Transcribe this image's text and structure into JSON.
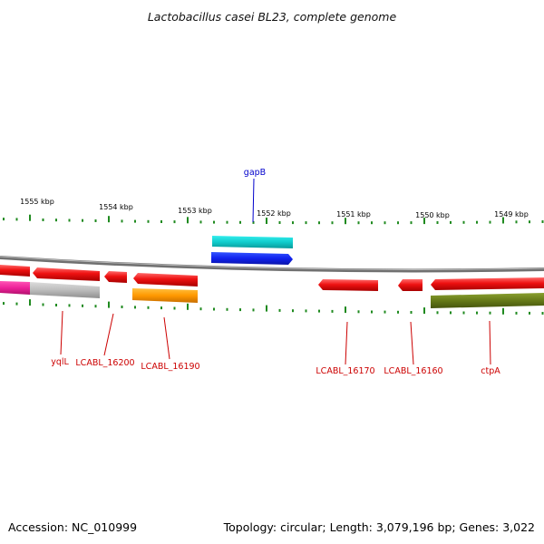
{
  "title": "Lactobacillus casei BL23, complete genome",
  "footer": {
    "accession": "Accession: NC_010999",
    "topology": "Topology: circular; Length: 3,079,196 bp; Genes: 3,022"
  },
  "colors": {
    "backbone": "#808080",
    "tick": "#1f8a1f",
    "feature_red": "#ee1111",
    "feature_cyan": "#11cccc",
    "feature_blue": "#1122ee",
    "feature_magenta": "#ee2299",
    "feature_gray": "#bcbcbc",
    "feature_orange": "#ff9900",
    "feature_olive": "#667a18",
    "label_red": "#cc0000",
    "label_blue": "#0000cc"
  },
  "scale_ticks": [
    {
      "label": "1555 kbp",
      "kbp": 1555
    },
    {
      "label": "1554 kbp",
      "kbp": 1554
    },
    {
      "label": "1553 kbp",
      "kbp": 1553
    },
    {
      "label": "1552 kbp",
      "kbp": 1552
    },
    {
      "label": "1551 kbp",
      "kbp": 1551
    },
    {
      "label": "1550 kbp",
      "kbp": 1550
    },
    {
      "label": "1549 kbp",
      "kbp": 1549
    }
  ],
  "gene_labels": [
    {
      "id": "gapB",
      "text": "gapB",
      "color": "blue"
    },
    {
      "id": "yqlL",
      "text": "yqlL",
      "color": "red"
    },
    {
      "id": "LCABL_16200",
      "text": "LCABL_16200",
      "color": "red"
    },
    {
      "id": "LCABL_16190",
      "text": "LCABL_16190",
      "color": "red"
    },
    {
      "id": "LCABL_16170",
      "text": "LCABL_16170",
      "color": "red"
    },
    {
      "id": "LCABL_16160",
      "text": "LCABL_16160",
      "color": "red"
    },
    {
      "id": "ctpA",
      "text": "ctpA",
      "color": "red"
    }
  ]
}
